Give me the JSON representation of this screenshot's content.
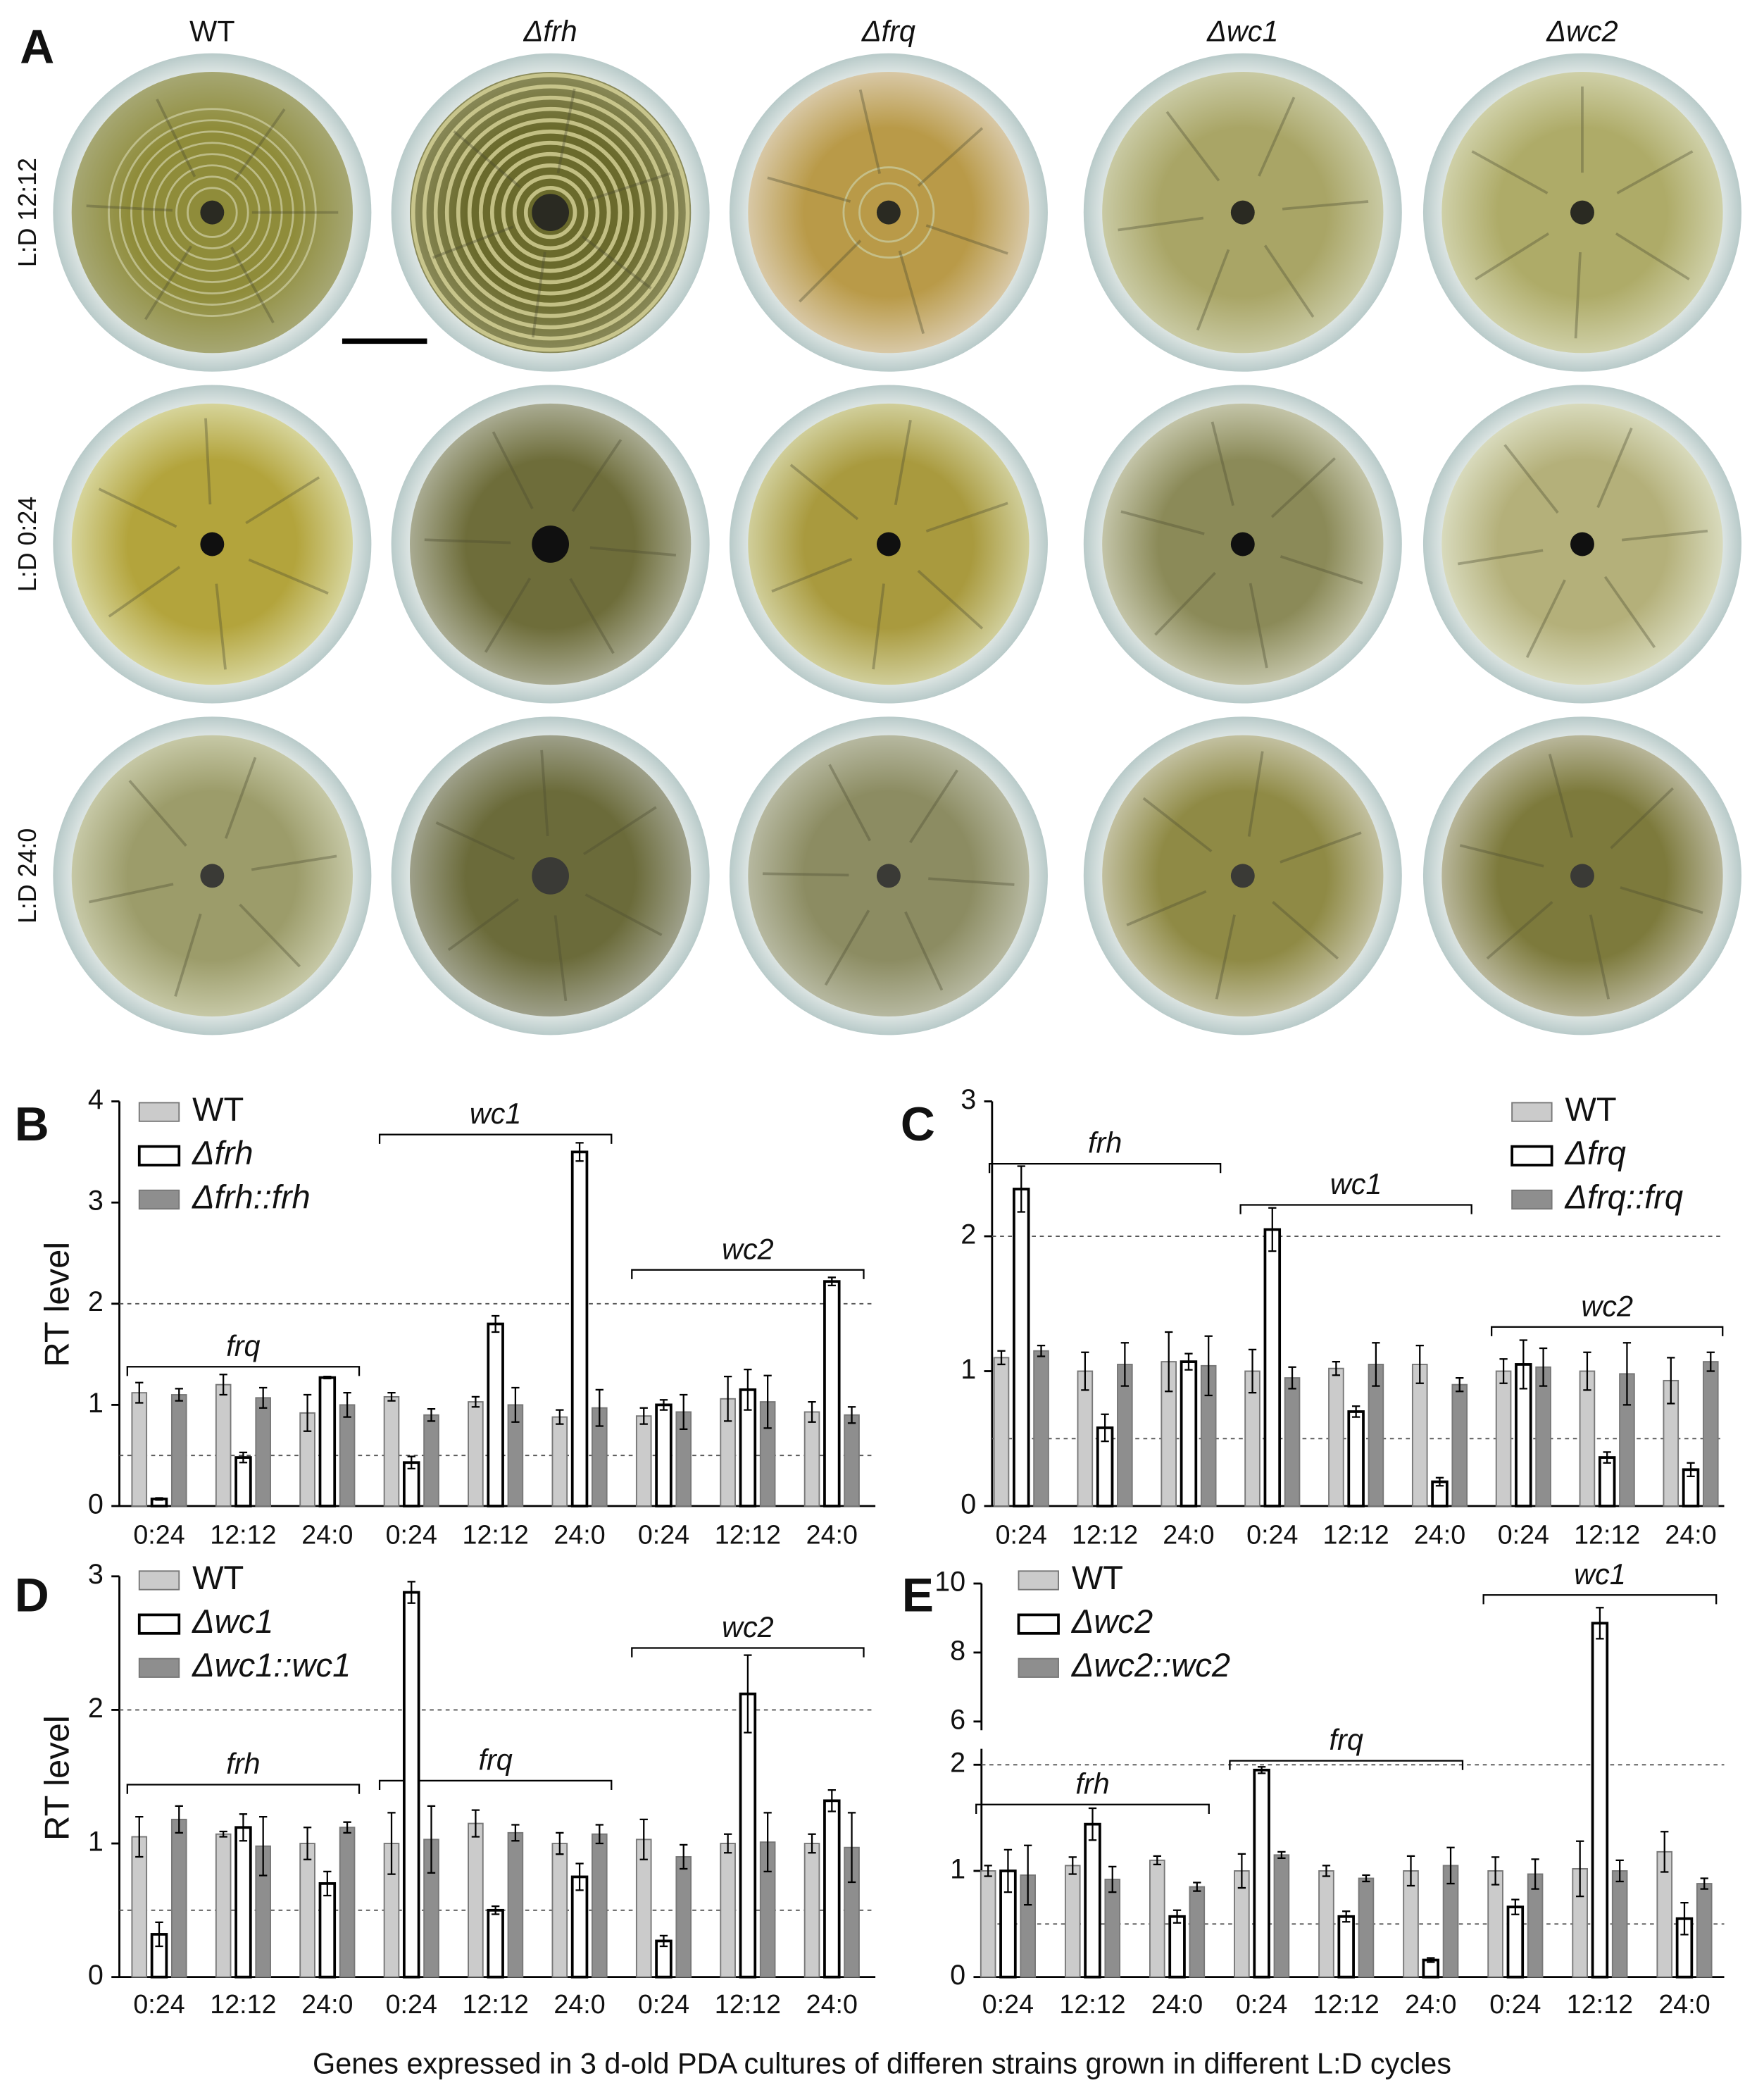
{
  "panel_a": {
    "label": "A",
    "columns": [
      "WT",
      "Δfrh",
      "Δfrq",
      "Δwc1",
      "Δwc2"
    ],
    "rows": [
      "L:D 12:12",
      "L:D 0:24",
      "L:D 24:0"
    ]
  },
  "chart_data": [
    {
      "type": "bar",
      "panel": "B",
      "ylabel": "RT level",
      "categories": [
        "0:24",
        "12:12",
        "24:0",
        "0:24",
        "12:12",
        "24:0",
        "0:24",
        "12:12",
        "24:0"
      ],
      "groups": [
        "frq",
        "wc1",
        "wc2"
      ],
      "series": [
        {
          "name": "WT",
          "color": "#cbcbcb",
          "values": [
            1.12,
            1.2,
            0.92,
            1.08,
            1.03,
            0.88,
            0.89,
            1.06,
            0.93
          ],
          "errors": [
            0.1,
            0.1,
            0.18,
            0.04,
            0.05,
            0.07,
            0.08,
            0.22,
            0.1
          ]
        },
        {
          "name": "Δfrh",
          "color": "#ffffff",
          "values": [
            0.07,
            0.48,
            1.27,
            0.43,
            1.8,
            3.5,
            1.0,
            1.15,
            2.22
          ],
          "errors": [
            0.01,
            0.05,
            0.01,
            0.06,
            0.08,
            0.09,
            0.05,
            0.2,
            0.04
          ]
        },
        {
          "name": "Δfrh::frh",
          "color": "#8e8e8e",
          "values": [
            1.1,
            1.07,
            1.0,
            0.9,
            1.0,
            0.97,
            0.93,
            1.03,
            0.9
          ],
          "errors": [
            0.06,
            0.1,
            0.12,
            0.06,
            0.17,
            0.18,
            0.17,
            0.26,
            0.08
          ]
        }
      ],
      "ylim": [
        0,
        4
      ],
      "yticks": [
        0,
        1,
        2,
        3,
        4
      ],
      "reference_lines": [
        0.5,
        2
      ],
      "legend": "upper left"
    },
    {
      "type": "bar",
      "panel": "C",
      "categories": [
        "0:24",
        "12:12",
        "24:0",
        "0:24",
        "12:12",
        "24:0",
        "0:24",
        "12:12",
        "24:0"
      ],
      "groups": [
        "frh",
        "wc1",
        "wc2"
      ],
      "series": [
        {
          "name": "WT",
          "color": "#cbcbcb",
          "values": [
            1.1,
            1.0,
            1.07,
            1.0,
            1.02,
            1.05,
            1.0,
            1.0,
            0.93
          ],
          "errors": [
            0.05,
            0.14,
            0.22,
            0.16,
            0.05,
            0.14,
            0.09,
            0.14,
            0.17
          ]
        },
        {
          "name": "Δfrq",
          "color": "#ffffff",
          "values": [
            2.35,
            0.58,
            1.07,
            2.05,
            0.7,
            0.18,
            1.05,
            0.36,
            0.27
          ],
          "errors": [
            0.17,
            0.1,
            0.06,
            0.16,
            0.04,
            0.03,
            0.18,
            0.04,
            0.05
          ]
        },
        {
          "name": "Δfrq::frq",
          "color": "#8e8e8e",
          "values": [
            1.15,
            1.05,
            1.04,
            0.95,
            1.05,
            0.9,
            1.03,
            0.98,
            1.07
          ],
          "errors": [
            0.04,
            0.16,
            0.22,
            0.08,
            0.16,
            0.05,
            0.14,
            0.23,
            0.07
          ]
        }
      ],
      "ylim": [
        0,
        3
      ],
      "yticks": [
        0,
        1,
        2,
        3
      ],
      "reference_lines": [
        0.5,
        2
      ],
      "legend": "upper right"
    },
    {
      "type": "bar",
      "panel": "D",
      "ylabel": "RT level",
      "categories": [
        "0:24",
        "12:12",
        "24:0",
        "0:24",
        "12:12",
        "24:0",
        "0:24",
        "12:12",
        "24:0"
      ],
      "groups": [
        "frh",
        "frq",
        "wc2"
      ],
      "series": [
        {
          "name": "WT",
          "color": "#cbcbcb",
          "values": [
            1.05,
            1.07,
            1.0,
            1.0,
            1.15,
            1.0,
            1.03,
            1.0,
            1.0
          ],
          "errors": [
            0.15,
            0.02,
            0.12,
            0.23,
            0.1,
            0.08,
            0.15,
            0.07,
            0.07
          ]
        },
        {
          "name": "Δwc1",
          "color": "#ffffff",
          "values": [
            0.32,
            1.12,
            0.7,
            2.88,
            0.5,
            0.75,
            0.27,
            2.12,
            1.32
          ],
          "errors": [
            0.09,
            0.1,
            0.09,
            0.08,
            0.03,
            0.1,
            0.04,
            0.29,
            0.08
          ]
        },
        {
          "name": "Δwc1::wc1",
          "color": "#8e8e8e",
          "values": [
            1.18,
            0.98,
            1.12,
            1.03,
            1.08,
            1.07,
            0.9,
            1.01,
            0.97
          ],
          "errors": [
            0.1,
            0.22,
            0.04,
            0.25,
            0.06,
            0.07,
            0.09,
            0.22,
            0.26
          ]
        }
      ],
      "ylim": [
        0,
        3
      ],
      "yticks": [
        0,
        1,
        2,
        3
      ],
      "reference_lines": [
        0.5,
        2
      ],
      "legend": "upper left"
    },
    {
      "type": "bar",
      "panel": "E",
      "categories": [
        "0:24",
        "12:12",
        "24:0",
        "0:24",
        "12:12",
        "24:0",
        "0:24",
        "12:12",
        "24:0"
      ],
      "groups": [
        "frh",
        "frq",
        "wc1"
      ],
      "series": [
        {
          "name": "WT",
          "color": "#cbcbcb",
          "values": [
            1.0,
            1.05,
            1.1,
            1.0,
            1.0,
            1.0,
            1.0,
            1.02,
            1.18
          ],
          "errors": [
            0.05,
            0.08,
            0.04,
            0.16,
            0.05,
            0.14,
            0.13,
            0.26,
            0.19
          ]
        },
        {
          "name": "Δwc2",
          "color": "#ffffff",
          "values": [
            1.0,
            1.44,
            0.57,
            1.95,
            0.57,
            0.16,
            0.66,
            8.85,
            0.55
          ],
          "errors": [
            0.2,
            0.15,
            0.06,
            0.03,
            0.05,
            0.02,
            0.07,
            0.45,
            0.15
          ]
        },
        {
          "name": "Δwc2::wc2",
          "color": "#8e8e8e",
          "values": [
            0.96,
            0.92,
            0.85,
            1.15,
            0.93,
            1.05,
            0.97,
            1.0,
            0.88
          ],
          "errors": [
            0.28,
            0.12,
            0.04,
            0.03,
            0.03,
            0.17,
            0.14,
            0.1,
            0.05
          ]
        }
      ],
      "ylim": [
        0,
        10
      ],
      "y_break": [
        2.1,
        5.9
      ],
      "yticks": [
        0,
        1,
        2,
        6,
        8,
        10
      ],
      "reference_lines": [
        0.5,
        2
      ],
      "legend": "upper left"
    }
  ],
  "caption": "Genes expressed in 3 d-old PDA cultures of differen strains grown in different L:D cycles"
}
